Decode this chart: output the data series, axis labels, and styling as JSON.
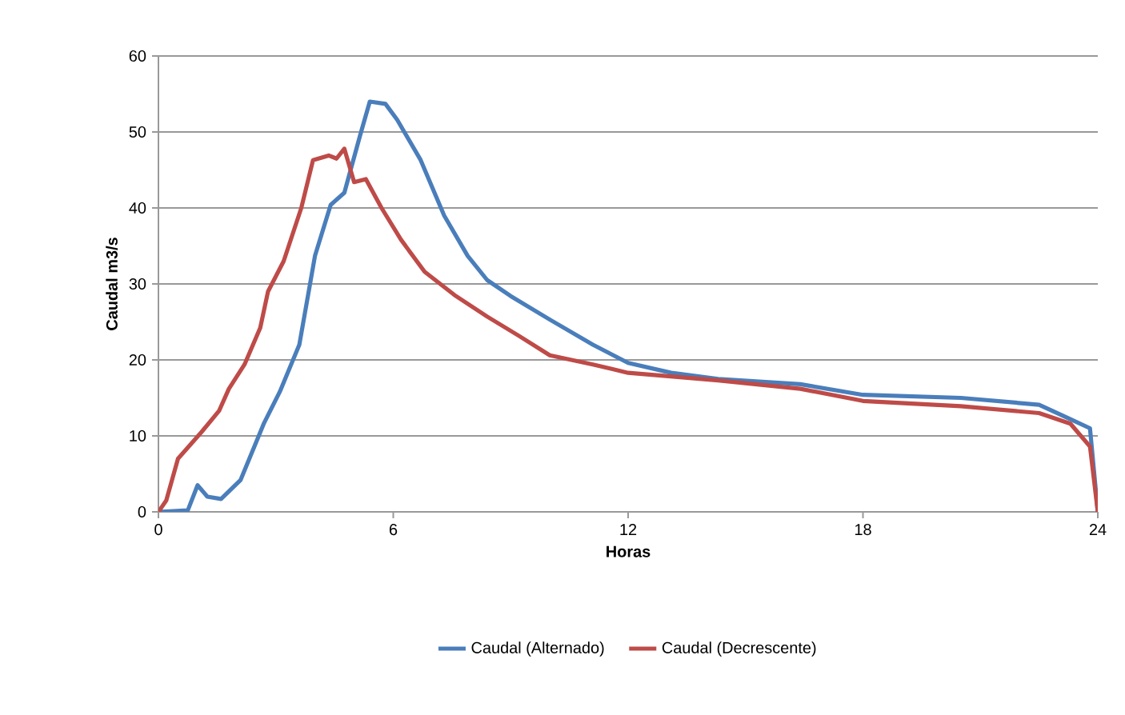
{
  "chart_data": {
    "type": "line",
    "xlabel": "Horas",
    "ylabel": "Caudal m3/s",
    "xlim": [
      0,
      24
    ],
    "xticks": [
      0,
      6,
      12,
      18,
      24
    ],
    "ylim": [
      0,
      60
    ],
    "yticks": [
      0,
      10,
      20,
      30,
      40,
      50,
      60
    ],
    "grid": "y",
    "legend": "bottom",
    "line_style": "solid",
    "marker": "none",
    "series": [
      {
        "name": "Caudal (Alternado)",
        "color": "#4a7ebb",
        "x": [
          0,
          0.75,
          1.0,
          1.25,
          1.6,
          2.1,
          2.7,
          3.1,
          3.6,
          4.0,
          4.4,
          4.75,
          5.15,
          5.4,
          5.8,
          6.1,
          6.7,
          7.3,
          7.9,
          8.4,
          9.0,
          10.0,
          11.1,
          12.0,
          13.1,
          14.3,
          16.4,
          18.0,
          20.5,
          22.5,
          23.3,
          23.8,
          24
        ],
        "values": [
          0,
          0.2,
          3.5,
          2,
          1.7,
          4.2,
          11.7,
          15.8,
          22,
          33.7,
          40.4,
          42,
          49.5,
          54,
          53.7,
          51.6,
          46.3,
          39,
          33.7,
          30.5,
          28.4,
          25.3,
          22,
          19.6,
          18.3,
          17.5,
          16.8,
          15.4,
          15,
          14.1,
          12.2,
          11,
          0
        ]
      },
      {
        "name": "Caudal (Decrescente)",
        "color": "#be4b48",
        "x": [
          0,
          0.2,
          0.5,
          1.1,
          1.55,
          1.8,
          2.2,
          2.6,
          2.8,
          3.2,
          3.65,
          3.95,
          4.35,
          4.55,
          4.75,
          5.0,
          5.3,
          5.7,
          6.2,
          6.8,
          7.6,
          8.4,
          9.2,
          10.0,
          11.1,
          12.0,
          14.3,
          16.4,
          18.0,
          20.5,
          22.5,
          23.3,
          23.8,
          24
        ],
        "values": [
          0,
          1.5,
          7,
          10.5,
          13.3,
          16.2,
          19.4,
          24.2,
          29,
          33,
          40,
          46.3,
          46.9,
          46.5,
          47.8,
          43.4,
          43.8,
          40,
          35.8,
          31.6,
          28.4,
          25.7,
          23.2,
          20.6,
          19.4,
          18.3,
          17.3,
          16.2,
          14.6,
          13.9,
          13,
          11.6,
          8.6,
          0
        ]
      }
    ]
  }
}
